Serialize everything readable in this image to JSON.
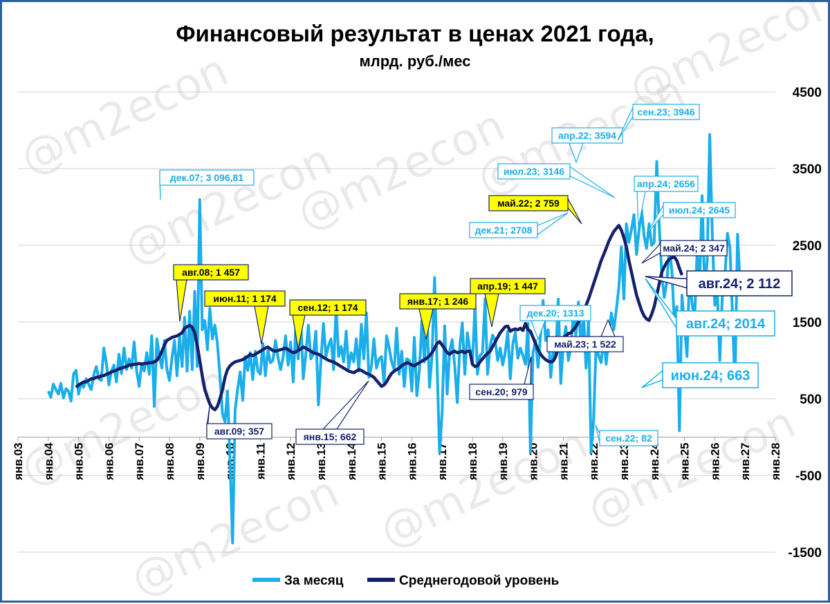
{
  "chart_data": {
    "type": "line",
    "title": "Финансовый результат в ценах 2021 года,",
    "subtitle": "млрд. руб./мес",
    "watermark": "@m2econ",
    "y_ticks": [
      "4500",
      "3500",
      "2500",
      "1500",
      "500",
      "-500",
      "-1500"
    ],
    "y_tick_values": [
      4500,
      3500,
      2500,
      1500,
      500,
      -500,
      -1500
    ],
    "ylim": [
      -1500,
      4500
    ],
    "x_ticks": [
      "янв.03",
      "янв.04",
      "янв.05",
      "янв.06",
      "янв.07",
      "янв.08",
      "янв.09",
      "янв.10",
      "янв.11",
      "янв.12",
      "янв.13",
      "янв.14",
      "янв.15",
      "янв.16",
      "янв.17",
      "янв.18",
      "янв.19",
      "янв.20",
      "янв.21",
      "янв.22",
      "янв.23",
      "янв.24",
      "янв.25",
      "янв.26",
      "янв.27",
      "янв.28"
    ],
    "xlim": [
      "2003-01",
      "2028-01"
    ],
    "grid": true,
    "legend_position": "bottom",
    "series": [
      {
        "name": "За месяц",
        "color": "#1aaeea",
        "start": "2004-01",
        "values": [
          600,
          520,
          690,
          620,
          560,
          700,
          510,
          630,
          600,
          470,
          820,
          870,
          560,
          700,
          650,
          760,
          690,
          620,
          810,
          920,
          760,
          740,
          1160,
          960,
          680,
          860,
          940,
          720,
          1080,
          830,
          1160,
          880,
          1020,
          900,
          1240,
          860,
          660,
          960,
          860,
          1100,
          820,
          1320,
          400,
          1280,
          1060,
          900,
          1260,
          880,
          740,
          1040,
          1260,
          800,
          1320,
          920,
          1560,
          860,
          1640,
          880,
          1900,
          920,
          3097,
          1400,
          1520,
          1140,
          1680,
          1280,
          1460,
          1220,
          800,
          300,
          200,
          600,
          -320,
          -1380,
          350,
          620,
          850,
          480,
          1050,
          870,
          1100,
          750,
          1120,
          860,
          820,
          1220,
          800,
          1130,
          970,
          1000,
          1260,
          1040,
          880,
          1040,
          1320,
          940,
          1240,
          720,
          1420,
          1020,
          1560,
          760,
          1080,
          1460,
          1020,
          1080,
          1380,
          420,
          1000,
          1480,
          1050,
          1190,
          1280,
          880,
          1700,
          1050,
          1180,
          980,
          1380,
          900,
          1100,
          980,
          1280,
          860,
          1470,
          1020,
          1620,
          780,
          920,
          1280,
          900,
          1020,
          1050,
          700,
          1320,
          1170,
          980,
          880,
          1420,
          820,
          1120,
          660,
          1020,
          1000,
          600,
          1300,
          540,
          880,
          1520,
          980,
          1580,
          650,
          1050,
          2080,
          950,
          -200,
          320,
          1450,
          560,
          1120,
          1270,
          920,
          450,
          1180,
          1490,
          820,
          1360,
          1140,
          950,
          1720,
          820,
          1060,
          1100,
          1800,
          820,
          1180,
          1330,
          1260,
          1000,
          1160,
          940,
          1100,
          1380,
          760,
          1210,
          1370,
          1030,
          1160,
          1060,
          950,
          1480,
          -200,
          1100,
          1260,
          910,
          1330,
          1780,
          1260,
          1400,
          780,
          1140,
          1060,
          1800,
          700,
          1220,
          1440,
          1000,
          1180,
          1600,
          1320,
          1760,
          1180,
          1620,
          900,
          1540,
          -200,
          220,
          1220,
          1060,
          970,
          1313,
          950,
          1280,
          1620,
          1400,
          1660,
          1950,
          2480,
          1800,
          2780,
          2540,
          2708,
          2900,
          2380,
          2700,
          2960,
          2620,
          2460,
          2780,
          2500,
          2540,
          3594,
          2759,
          2120,
          1820,
          2020,
          2460,
          2180,
          1500,
          1700,
          82,
          1850,
          1460,
          1050,
          2150,
          1750,
          1522,
          2400,
          2000,
          3146,
          1920,
          2300,
          3946,
          2650,
          1720,
          1900,
          1000,
          1850,
          2080,
          2656,
          2480,
          1580,
          663,
          2645,
          2014
        ]
      },
      {
        "name": "Среднегодовой уровень",
        "color": "#15206a",
        "start": "2004-12",
        "values": [
          650,
          680,
          700,
          720,
          720,
          740,
          760,
          760,
          780,
          780,
          800,
          800,
          820,
          830,
          850,
          860,
          870,
          890,
          900,
          910,
          920,
          940,
          940,
          950,
          950,
          960,
          950,
          960,
          960,
          970,
          970,
          980,
          1000,
          1050,
          1120,
          1200,
          1260,
          1280,
          1300,
          1310,
          1320,
          1340,
          1360,
          1420,
          1440,
          1457,
          1430,
          1360,
          1200,
          1000,
          800,
          620,
          520,
          430,
          380,
          357,
          400,
          500,
          620,
          780,
          880,
          930,
          960,
          980,
          990,
          1000,
          1010,
          1030,
          1050,
          1080,
          1060,
          1080,
          1100,
          1120,
          1140,
          1160,
          1174,
          1150,
          1130,
          1120,
          1130,
          1140,
          1150,
          1160,
          1140,
          1120,
          1100,
          1110,
          1130,
          1150,
          1174,
          1160,
          1140,
          1120,
          1100,
          1090,
          1080,
          1060,
          1040,
          1020,
          1000,
          990,
          980,
          960,
          940,
          920,
          900,
          880,
          860,
          850,
          840,
          860,
          880,
          870,
          850,
          830,
          820,
          800,
          780,
          740,
          700,
          662,
          680,
          720,
          780,
          830,
          860,
          880,
          900,
          930,
          950,
          970,
          960,
          940,
          930,
          950,
          970,
          990,
          1010,
          1030,
          1060,
          1100,
          1160,
          1220,
          1246,
          1200,
          1150,
          1100,
          1080,
          1110,
          1120,
          1100,
          1110,
          1120,
          1100,
          1120,
          1120,
          950,
          920,
          930,
          980,
          1020,
          1060,
          1090,
          1120,
          1180,
          1240,
          1300,
          1360,
          1400,
          1440,
          1447,
          1380,
          1400,
          1410,
          1400,
          1420,
          1390,
          1480,
          1400,
          1380,
          1300,
          1220,
          1140,
          1080,
          1040,
          1010,
          990,
          979,
          990,
          1050,
          1180,
          1250,
          1300,
          1320,
          1350,
          1360,
          1400,
          1440,
          1500,
          1560,
          1640,
          1720,
          1800,
          1900,
          2000,
          2100,
          2200,
          2300,
          2380,
          2460,
          2550,
          2620,
          2680,
          2720,
          2759,
          2700,
          2600,
          2480,
          2300,
          2150,
          2000,
          1850,
          1750,
          1650,
          1580,
          1540,
          1522,
          1600,
          1700,
          1850,
          2000,
          2150,
          2220,
          2280,
          2320,
          2340,
          2347,
          2300,
          2200,
          2112
        ]
      }
    ],
    "annotations": [
      {
        "text": "дек.07;  3 096,81",
        "style": "light"
      },
      {
        "text": "авг.08; 1 457",
        "style": "yellow"
      },
      {
        "text": "авг.09; 357",
        "style": "dark"
      },
      {
        "text": "июн.11; 1 174",
        "style": "yellow"
      },
      {
        "text": "сен.12; 1 174",
        "style": "yellow"
      },
      {
        "text": "янв.15; 662",
        "style": "dark"
      },
      {
        "text": "янв.17; 1 246",
        "style": "yellow"
      },
      {
        "text": "апр.19; 1 447",
        "style": "yellow"
      },
      {
        "text": "сен.20; 979",
        "style": "dark"
      },
      {
        "text": "дек.20; 1313",
        "style": "light"
      },
      {
        "text": "дек.21; 2708",
        "style": "light"
      },
      {
        "text": "май.22; 2 759",
        "style": "yellow"
      },
      {
        "text": "апр.22; 3594",
        "style": "light"
      },
      {
        "text": "сен.22; 82",
        "style": "light"
      },
      {
        "text": "июл.23; 3146",
        "style": "light"
      },
      {
        "text": "май.23; 1 522",
        "style": "dark"
      },
      {
        "text": "сен.23; 3946",
        "style": "light"
      },
      {
        "text": "апр.24; 2656",
        "style": "light"
      },
      {
        "text": "июл.24; 2645",
        "style": "light"
      },
      {
        "text": "май.24; 2 347",
        "style": "dark"
      },
      {
        "text": "авг.24; 2 112",
        "style": "dark-big"
      },
      {
        "text": "авг.24; 2014",
        "style": "light-big"
      },
      {
        "text": "июн.24; 663",
        "style": "light-big"
      }
    ]
  }
}
